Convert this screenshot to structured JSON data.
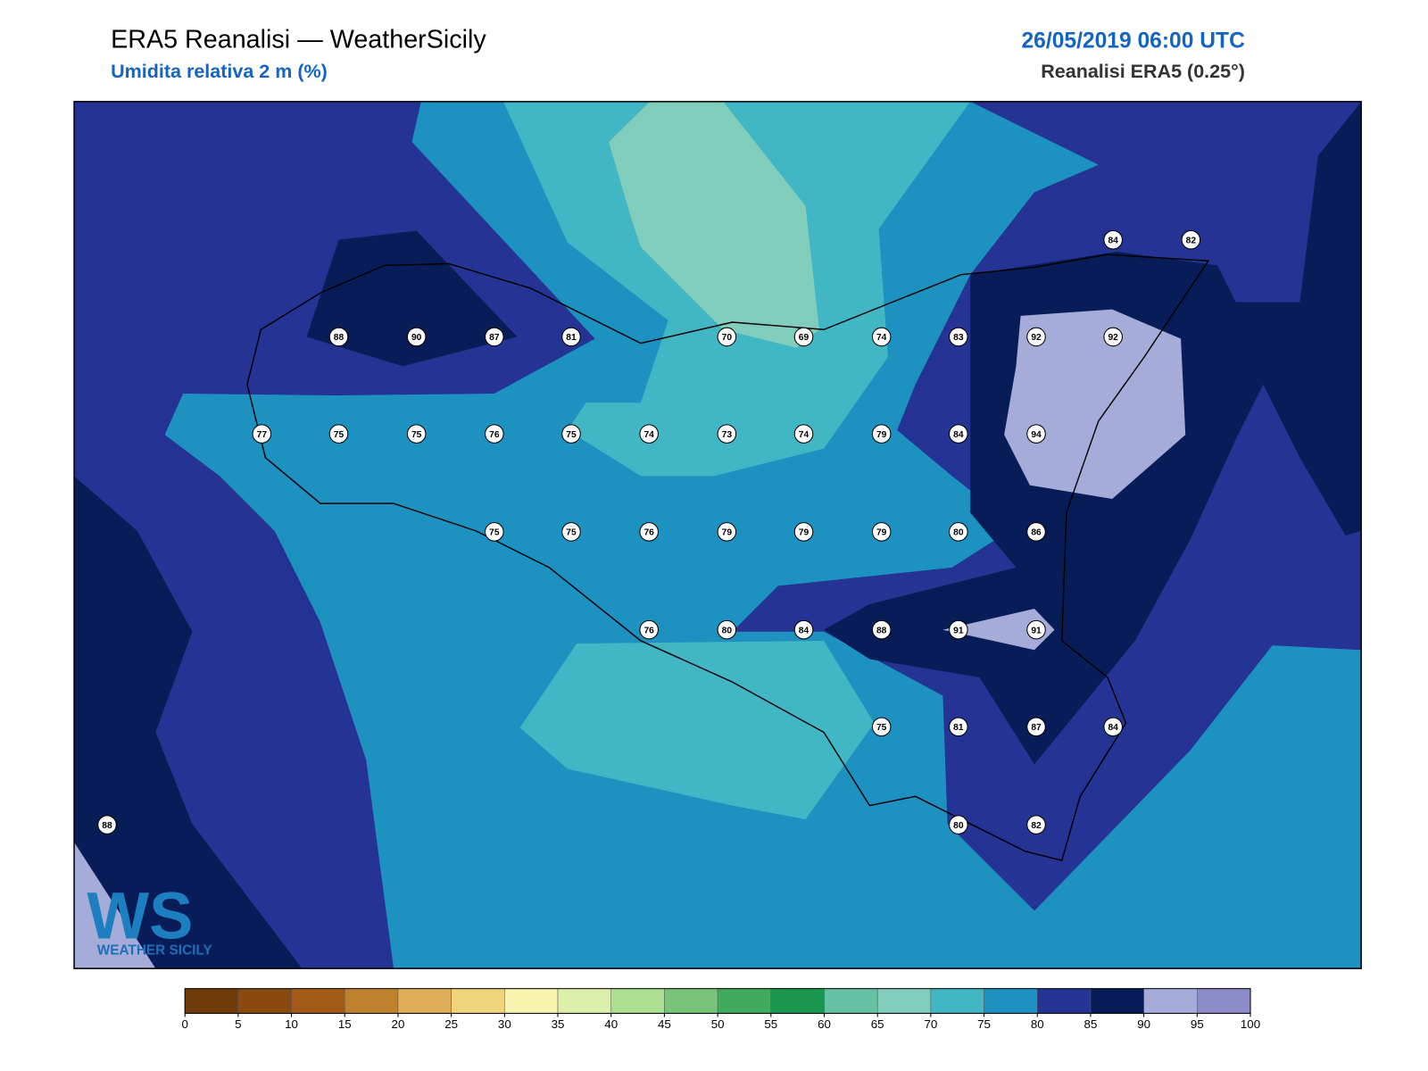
{
  "header": {
    "title": "ERA5 Reanalisi — WeatherSicily",
    "subtitle": "Umidita relativa 2 m (%)",
    "datetime": "26/05/2019 06:00 UTC",
    "source": "Reanalisi ERA5 (0.25°)"
  },
  "stations": [
    88,
    90,
    87,
    81,
    70,
    69,
    74,
    83,
    92,
    92,
    84,
    82,
    77,
    75,
    75,
    76,
    75,
    74,
    73,
    74,
    79,
    84,
    94,
    75,
    75,
    76,
    79,
    79,
    79,
    80,
    86,
    76,
    80,
    84,
    88,
    91,
    91,
    75,
    81,
    87,
    84,
    88,
    80,
    82
  ],
  "logo": {
    "mark": "WS",
    "name": "WEATHER SICILY"
  },
  "colorbar": {
    "ticks": [
      0,
      5,
      10,
      15,
      20,
      25,
      30,
      35,
      40,
      45,
      50,
      55,
      60,
      65,
      70,
      75,
      80,
      85,
      90,
      95,
      100
    ],
    "colors": [
      "#6e3a08",
      "#8a4a0e",
      "#a35a16",
      "#c0812e",
      "#dfae5a",
      "#f0d47c",
      "#f6f4ae",
      "#dcefaa",
      "#addf90",
      "#78c47a",
      "#41ab5d",
      "#1a9850",
      "#66c2a4",
      "#80cdbb",
      "#41b6c4",
      "#1d91c0",
      "#253494",
      "#081d58",
      "#a6acd9",
      "#8c8cc8"
    ]
  }
}
